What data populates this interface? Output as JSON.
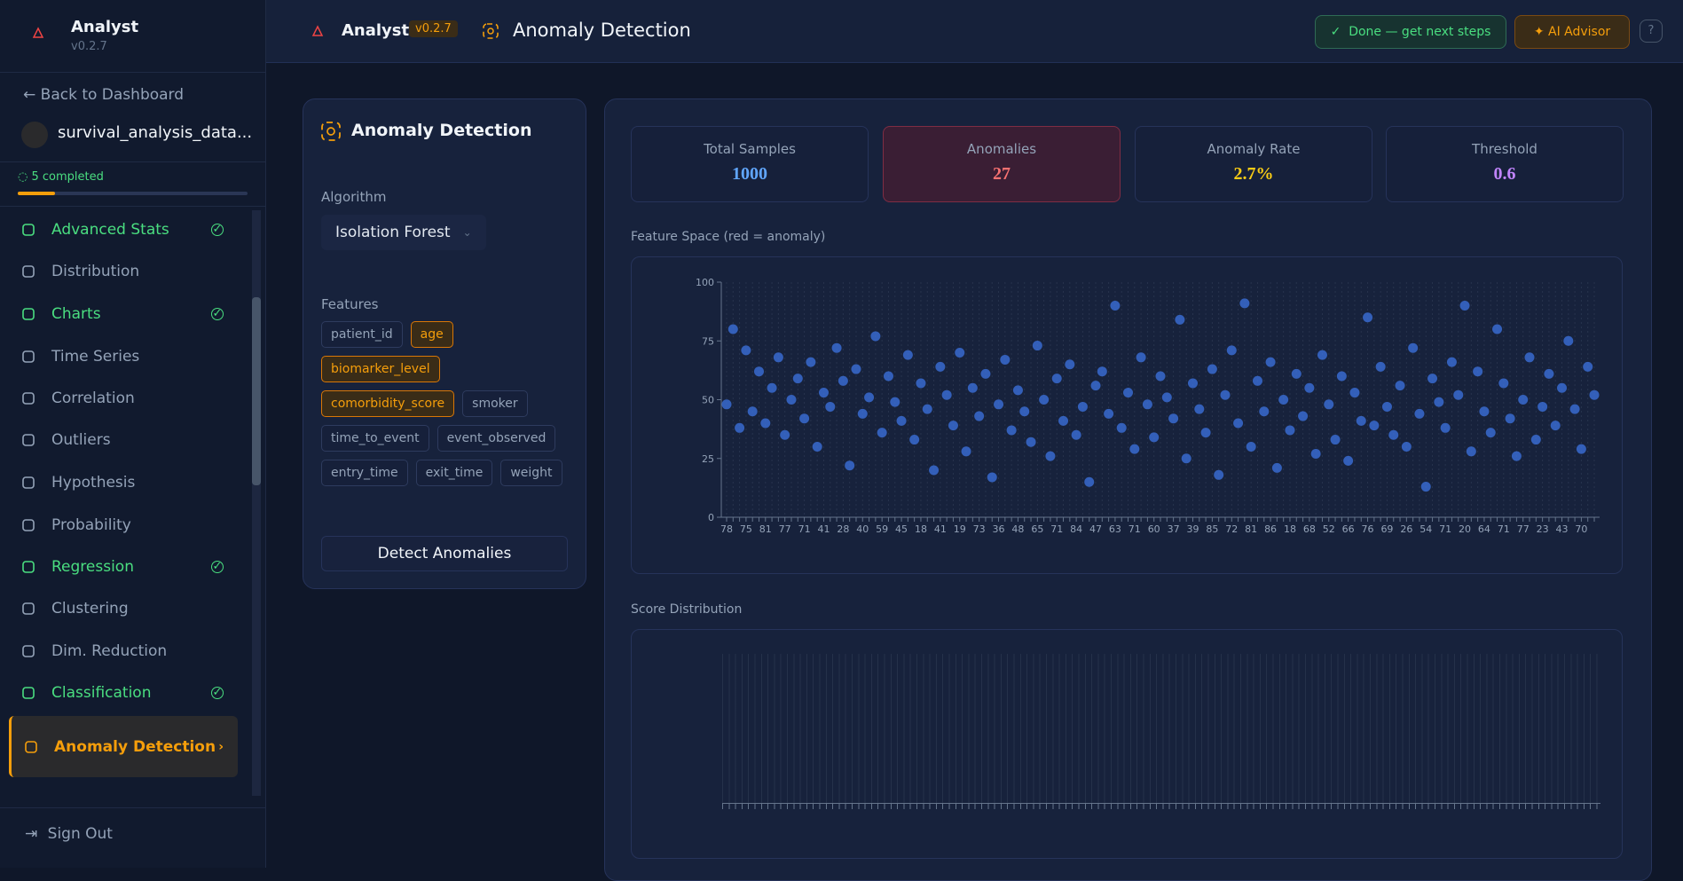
{
  "app": {
    "name": "Analyst",
    "version": "v0.2.7"
  },
  "sidebar": {
    "back": "Back to Dashboard",
    "dataset": "survival_analysis_data...",
    "progress": "5 completed",
    "nav": [
      {
        "label": "Advanced Stats",
        "done": true
      },
      {
        "label": "Distribution",
        "done": false
      },
      {
        "label": "Charts",
        "done": true
      },
      {
        "label": "Time Series",
        "done": false
      },
      {
        "label": "Correlation",
        "done": false
      },
      {
        "label": "Outliers",
        "done": false
      },
      {
        "label": "Hypothesis",
        "done": false
      },
      {
        "label": "Probability",
        "done": false
      },
      {
        "label": "Regression",
        "done": true
      },
      {
        "label": "Clustering",
        "done": false
      },
      {
        "label": "Dim. Reduction",
        "done": false
      },
      {
        "label": "Classification",
        "done": true
      },
      {
        "label": "Anomaly Detection",
        "done": false,
        "active": true
      }
    ],
    "sign_out": "Sign Out"
  },
  "header": {
    "app_name": "Analyst",
    "version": "v0.2.7",
    "page_title": "Anomaly Detection",
    "done_button": "Done — get next steps",
    "advisor_button": "AI Advisor"
  },
  "panel": {
    "title": "Anomaly Detection",
    "algorithm_label": "Algorithm",
    "algorithm": "Isolation Forest",
    "features_label": "Features",
    "features": [
      {
        "name": "patient_id",
        "selected": false
      },
      {
        "name": "age",
        "selected": true
      },
      {
        "name": "biomarker_level",
        "selected": true
      },
      {
        "name": "comorbidity_score",
        "selected": true
      },
      {
        "name": "smoker",
        "selected": false
      },
      {
        "name": "time_to_event",
        "selected": false
      },
      {
        "name": "event_observed",
        "selected": false
      },
      {
        "name": "entry_time",
        "selected": false
      },
      {
        "name": "exit_time",
        "selected": false
      },
      {
        "name": "weight",
        "selected": false
      }
    ],
    "button": "Detect Anomalies"
  },
  "stats": [
    {
      "label": "Total Samples",
      "value": 1000,
      "color": "#60a5fa"
    },
    {
      "label": "Anomalies",
      "value": 27,
      "color": "#f87171",
      "highlight": true
    },
    {
      "label": "Anomaly Rate",
      "value": 2.7,
      "value_label": "2.7%",
      "color": "#facc15"
    },
    {
      "label": "Threshold",
      "value": 0.6,
      "color": "#c084fc"
    }
  ],
  "chart_data": [
    {
      "type": "scatter",
      "title": "Feature Space (red = anomaly)",
      "color": "#3b6fd8",
      "grid": true,
      "categories": [
        "78",
        null,
        null,
        "75",
        null,
        null,
        "81",
        null,
        null,
        "77",
        null,
        null,
        "71",
        null,
        null,
        "41",
        null,
        null,
        "28",
        null,
        null,
        "40",
        null,
        null,
        "59",
        null,
        null,
        "45",
        null,
        null,
        "18",
        null,
        null,
        "41",
        null,
        null,
        "19",
        null,
        null,
        "73",
        null,
        null,
        "36",
        null,
        null,
        "48",
        null,
        null,
        "65",
        null,
        null,
        "71",
        null,
        null,
        "84",
        null,
        null,
        "47",
        null,
        null,
        "63",
        null,
        null,
        "71",
        null,
        null,
        "60",
        null,
        null,
        "37",
        null,
        null,
        "39",
        null,
        null,
        "85",
        null,
        null,
        "72",
        null,
        null,
        "81",
        null,
        null,
        "86",
        null,
        null,
        "18",
        null,
        null,
        "68",
        null,
        null,
        "52",
        null,
        null,
        "66",
        null,
        null,
        "76",
        null,
        null,
        "69",
        null,
        null,
        "26",
        null,
        null,
        "54",
        null,
        null,
        "71",
        null,
        null,
        "20",
        null,
        null,
        "64",
        null,
        null,
        "71",
        null,
        null,
        "77",
        null,
        null,
        "23",
        null,
        null,
        "43",
        null,
        null,
        "70",
        null,
        null
      ],
      "values": [
        48,
        80,
        38,
        71,
        45,
        62,
        40,
        55,
        68,
        35,
        50,
        59,
        42,
        66,
        30,
        53,
        47,
        72,
        58,
        22,
        63,
        44,
        51,
        77,
        36,
        60,
        49,
        41,
        69,
        33,
        57,
        46,
        20,
        64,
        52,
        39,
        70,
        28,
        55,
        43,
        61,
        17,
        48,
        67,
        37,
        54,
        45,
        32,
        73,
        50,
        26,
        59,
        41,
        65,
        35,
        47,
        15,
        56,
        62,
        44,
        90,
        38,
        53,
        29,
        68,
        48,
        34,
        60,
        51,
        42,
        84,
        25,
        57,
        46,
        36,
        63,
        18,
        52,
        71,
        40,
        91,
        30,
        58,
        45,
        66,
        21,
        50,
        37,
        61,
        43,
        55,
        27,
        69,
        48,
        33,
        60,
        24,
        53,
        41,
        85,
        39,
        64,
        47,
        35,
        56,
        30,
        72,
        44,
        13,
        59,
        49,
        38,
        66,
        52,
        90,
        28,
        62,
        45,
        36,
        80,
        57,
        42,
        26,
        50,
        68,
        33,
        47,
        61,
        39,
        55,
        75,
        46,
        29,
        64,
        52
      ],
      "ylim": [
        0,
        100
      ],
      "yticks": [
        0,
        25,
        50,
        75,
        100
      ]
    },
    {
      "type": "histogram",
      "title": "Score Distribution"
    }
  ]
}
